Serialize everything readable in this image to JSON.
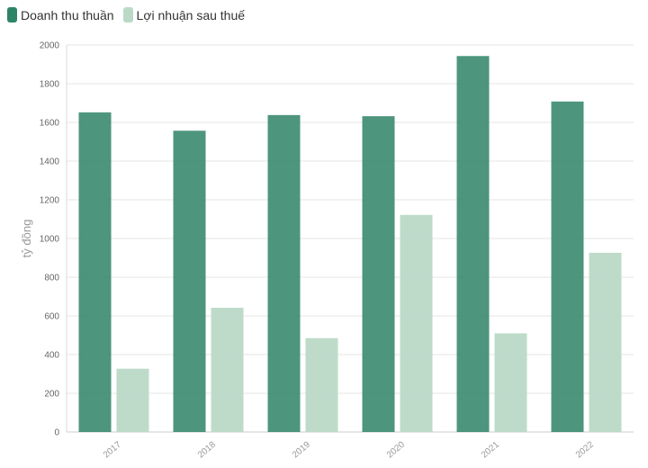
{
  "chart_data": {
    "type": "bar",
    "title": "",
    "xlabel": "",
    "ylabel": "tỷ đồng",
    "ylim": [
      0,
      2000
    ],
    "yticks": [
      0,
      200,
      400,
      600,
      800,
      1000,
      1200,
      1400,
      1600,
      1800,
      2000
    ],
    "grid": true,
    "legend_position": "top-left",
    "categories": [
      "2017",
      "2018",
      "2019",
      "2020",
      "2021",
      "2022"
    ],
    "series": [
      {
        "name": "Doanh thu thuần",
        "color": "#2e8466",
        "values": [
          1652,
          1557,
          1638,
          1632,
          1943,
          1708
        ]
      },
      {
        "name": "Lợi nhuận sau thuế",
        "color": "#bad9c7",
        "values": [
          327,
          642,
          485,
          1122,
          510,
          926
        ]
      }
    ]
  }
}
